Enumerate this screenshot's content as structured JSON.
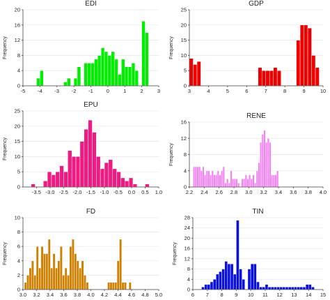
{
  "chart_data": [
    {
      "type": "bar",
      "title": "EDI",
      "ylabel": "Frequency",
      "color": "#00ee00",
      "xlim": [
        -5,
        3
      ],
      "ylim": [
        0,
        20
      ],
      "xticks": [
        "-5",
        "-4",
        "-3",
        "-2",
        "-1",
        "0",
        "1",
        "2",
        "3"
      ],
      "yticks": [
        "0",
        "4",
        "8",
        "12",
        "16",
        "20"
      ],
      "x_start": -4.2,
      "bin_width": 0.2,
      "values": [
        2,
        4,
        0,
        0,
        0,
        0,
        0,
        0,
        1,
        2,
        0,
        2,
        5,
        0,
        6,
        6,
        6,
        7,
        8,
        10,
        9,
        8,
        9,
        7,
        3,
        7,
        5,
        5,
        6,
        4,
        0,
        17,
        14,
        0,
        0,
        0
      ]
    },
    {
      "type": "bar",
      "title": "GDP",
      "ylabel": "Frequency",
      "color": "#ee0000",
      "xlim": [
        3,
        10
      ],
      "ylim": [
        0,
        25
      ],
      "xticks": [
        "3",
        "4",
        "5",
        "6",
        "7",
        "8",
        "9",
        "10"
      ],
      "yticks": [
        "0",
        "5",
        "10",
        "15",
        "20",
        "25"
      ],
      "x_start": 3.0,
      "bin_width": 0.2,
      "values": [
        9,
        7,
        8,
        0,
        0,
        0,
        0,
        0,
        0,
        0,
        0,
        0,
        0,
        0,
        0,
        0,
        0,
        0,
        6,
        5,
        5,
        5,
        6,
        5,
        0,
        0,
        0,
        0,
        15,
        20,
        20,
        19,
        10,
        6,
        0
      ]
    },
    {
      "type": "bar",
      "title": "EPU",
      "ylabel": "Frequency",
      "color": "#ee1c82",
      "xlim": [
        -4,
        1
      ],
      "ylim": [
        0,
        25
      ],
      "xticks": [
        "-3.5",
        "-3.0",
        "-2.5",
        "-2.0",
        "-1.5",
        "-1.0",
        "-0.5",
        "0.0",
        "0.5",
        "1.0"
      ],
      "yticks": [
        "0",
        "5",
        "10",
        "15",
        "20",
        "25"
      ],
      "x_start": -3.7,
      "bin_width": 0.15,
      "values": [
        1,
        0,
        0,
        2,
        5,
        4,
        5,
        7,
        5,
        12,
        10,
        10,
        15,
        19,
        22,
        18,
        10,
        6,
        8,
        9,
        6,
        5,
        3,
        2,
        3,
        1,
        0,
        0,
        1
      ]
    },
    {
      "type": "bar",
      "title": "RENE",
      "ylabel": "Frequency",
      "color": "#f780f7",
      "xlim": [
        2.2,
        4.0
      ],
      "ylim": [
        0,
        16
      ],
      "xticks": [
        "2.2",
        "2.4",
        "2.6",
        "2.8",
        "3.0",
        "3.2",
        "3.4",
        "3.6",
        "3.8",
        "4.0"
      ],
      "yticks": [
        "0",
        "4",
        "8",
        "12",
        "16"
      ],
      "x_start": 2.25,
      "bin_width": 0.025,
      "values": [
        5,
        5,
        5,
        5,
        4,
        5,
        3,
        4,
        4,
        3,
        4,
        3,
        3,
        4,
        3,
        4,
        5,
        1,
        2,
        1,
        4,
        2,
        2,
        2,
        1,
        0,
        2,
        2,
        3,
        2,
        3,
        2,
        3,
        1,
        4,
        6,
        11,
        13,
        14,
        11,
        12,
        11,
        3,
        3,
        3,
        4
      ]
    },
    {
      "type": "bar",
      "title": "FD",
      "ylabel": "Frequency",
      "color": "#d08000",
      "xlim": [
        3.0,
        5.0
      ],
      "ylim": [
        0,
        10
      ],
      "xticks": [
        "3.0",
        "3.2",
        "3.4",
        "3.6",
        "3.8",
        "4.0",
        "4.2",
        "4.4",
        "4.6",
        "4.8",
        "5.0"
      ],
      "yticks": [
        "0",
        "2",
        "4",
        "6",
        "8",
        "10"
      ],
      "x_start": 3.02,
      "bin_width": 0.035,
      "values": [
        1,
        2,
        3,
        4,
        2,
        6,
        3,
        6,
        5,
        5,
        7,
        3,
        5,
        3,
        4,
        6,
        2,
        3,
        2,
        6,
        7,
        5,
        4,
        3,
        4,
        2,
        1,
        0,
        0,
        0,
        0,
        0,
        0,
        0,
        0,
        1,
        1,
        1,
        1,
        4,
        7,
        1,
        1,
        0,
        1
      ]
    },
    {
      "type": "bar",
      "title": "TIN",
      "ylabel": "Frequency",
      "color": "#0a10dd",
      "xlim": [
        6,
        15
      ],
      "ylim": [
        0,
        28
      ],
      "xticks": [
        "6",
        "7",
        "8",
        "9",
        "10",
        "11",
        "12",
        "13",
        "14",
        "15"
      ],
      "yticks": [
        "0",
        "4",
        "8",
        "12",
        "16",
        "20",
        "24",
        "28"
      ],
      "x_start": 6.6,
      "bin_width": 0.2,
      "values": [
        1,
        2,
        2,
        3,
        4,
        6,
        7,
        8,
        11,
        10,
        10,
        6,
        27,
        8,
        4,
        0,
        8,
        10,
        10,
        3,
        1,
        1,
        2,
        1,
        1,
        1,
        1,
        1,
        1,
        1,
        1,
        1,
        1,
        1,
        1,
        1,
        2,
        2,
        1,
        0,
        0,
        0
      ]
    }
  ]
}
